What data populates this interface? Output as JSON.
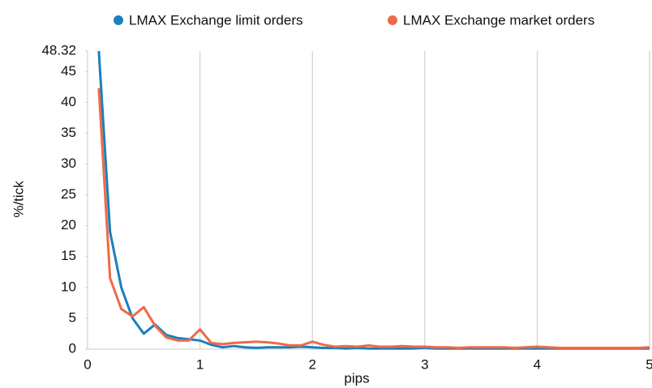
{
  "chart_data": {
    "type": "line",
    "x_label": "pips",
    "y_label": "%/tick",
    "x": [
      0.1,
      0.2,
      0.3,
      0.4,
      0.5,
      0.6,
      0.7,
      0.8,
      0.9,
      1.0,
      1.1,
      1.2,
      1.3,
      1.4,
      1.5,
      1.6,
      1.7,
      1.8,
      1.9,
      2.0,
      2.1,
      2.2,
      2.3,
      2.4,
      2.5,
      2.6,
      2.7,
      2.8,
      2.9,
      3.0,
      3.1,
      3.2,
      3.3,
      3.4,
      3.5,
      3.6,
      3.7,
      3.8,
      3.9,
      4.0,
      4.1,
      4.2,
      4.3,
      4.4,
      4.5,
      4.6,
      4.7,
      4.8,
      4.9,
      5.0
    ],
    "series": [
      {
        "name": "LMAX Exchange limit orders",
        "color": "#1a7fbf",
        "values": [
          48.32,
          19,
          10,
          5,
          2.5,
          4,
          2.3,
          1.8,
          1.6,
          1.4,
          0.7,
          0.3,
          0.5,
          0.3,
          0.2,
          0.3,
          0.3,
          0.3,
          0.4,
          0.3,
          0.2,
          0.2,
          0.1,
          0.2,
          0.1,
          0.1,
          0.1,
          0.1,
          0.1,
          0.2,
          0.1,
          0.1,
          0.1,
          0.1,
          0.1,
          0.1,
          0.1,
          0.1,
          0.1,
          0.1,
          0.1,
          0.1,
          0.1,
          0.1,
          0.1,
          0.1,
          0.1,
          0.1,
          0.1,
          0.1
        ]
      },
      {
        "name": "LMAX Exchange market orders",
        "color": "#ee6a45",
        "values": [
          42.3,
          11.5,
          6.5,
          5.3,
          6.8,
          3.8,
          1.9,
          1.4,
          1.4,
          3.2,
          1.0,
          0.8,
          1.0,
          1.1,
          1.2,
          1.1,
          0.9,
          0.6,
          0.6,
          1.2,
          0.7,
          0.4,
          0.5,
          0.4,
          0.6,
          0.4,
          0.4,
          0.5,
          0.4,
          0.4,
          0.3,
          0.3,
          0.2,
          0.3,
          0.3,
          0.3,
          0.3,
          0.2,
          0.3,
          0.4,
          0.3,
          0.2,
          0.2,
          0.2,
          0.2,
          0.2,
          0.2,
          0.2,
          0.2,
          0.3
        ]
      }
    ],
    "xlim": [
      0,
      5
    ],
    "xticks": [
      0,
      1,
      2,
      3,
      4,
      5
    ],
    "ylim": [
      0,
      48.32
    ],
    "yticks": [
      0,
      5,
      10,
      15,
      20,
      25,
      30,
      35,
      40,
      45,
      48.32
    ],
    "grid": "x"
  }
}
